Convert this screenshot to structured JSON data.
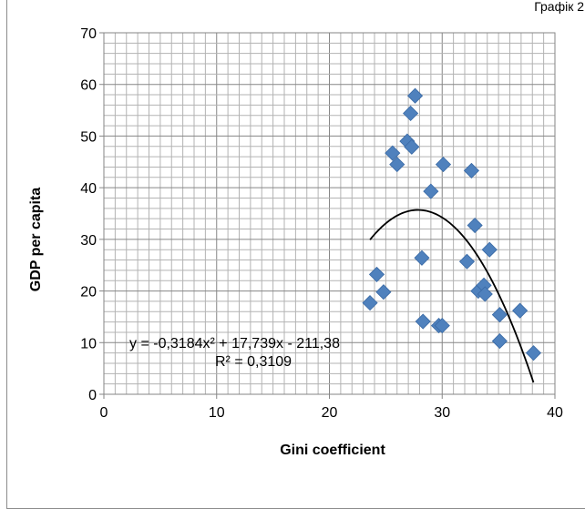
{
  "corner_label": "Графік 2",
  "chart_data": {
    "type": "scatter",
    "title": "",
    "xlabel": "Gini coefficient",
    "ylabel": "GDP per capita",
    "xlim": [
      0,
      40
    ],
    "ylim": [
      0,
      70
    ],
    "xticks": [
      0,
      10,
      20,
      30,
      40
    ],
    "yticks": [
      0,
      10,
      20,
      30,
      40,
      50,
      60,
      70
    ],
    "grid": true,
    "marker": "diamond",
    "marker_color": "#4f81bd",
    "points": [
      {
        "x": 23.6,
        "y": 17.7
      },
      {
        "x": 24.2,
        "y": 23.2
      },
      {
        "x": 24.8,
        "y": 19.8
      },
      {
        "x": 25.6,
        "y": 46.7
      },
      {
        "x": 26.0,
        "y": 44.5
      },
      {
        "x": 26.9,
        "y": 49.0
      },
      {
        "x": 27.2,
        "y": 54.4
      },
      {
        "x": 27.3,
        "y": 47.9
      },
      {
        "x": 27.6,
        "y": 57.8
      },
      {
        "x": 28.2,
        "y": 26.4
      },
      {
        "x": 28.3,
        "y": 14.1
      },
      {
        "x": 29.0,
        "y": 39.3
      },
      {
        "x": 29.7,
        "y": 13.3
      },
      {
        "x": 30.0,
        "y": 13.3
      },
      {
        "x": 30.1,
        "y": 44.5
      },
      {
        "x": 32.2,
        "y": 25.7
      },
      {
        "x": 32.6,
        "y": 43.3
      },
      {
        "x": 32.9,
        "y": 32.7
      },
      {
        "x": 33.2,
        "y": 20.0
      },
      {
        "x": 33.7,
        "y": 21.1
      },
      {
        "x": 33.8,
        "y": 19.4
      },
      {
        "x": 34.2,
        "y": 28.0
      },
      {
        "x": 35.1,
        "y": 15.4
      },
      {
        "x": 35.1,
        "y": 10.3
      },
      {
        "x": 36.9,
        "y": 16.2
      },
      {
        "x": 38.1,
        "y": 8.0
      }
    ],
    "trendline": {
      "type": "polynomial",
      "coefficients": [
        -0.3184,
        17.739,
        -211.38
      ],
      "x_range": [
        23.6,
        38.1
      ],
      "color": "#000000",
      "equation_text": "y = -0,3184x² + 17,739x - 211,38",
      "r2_text": "R² = 0,3109"
    }
  }
}
